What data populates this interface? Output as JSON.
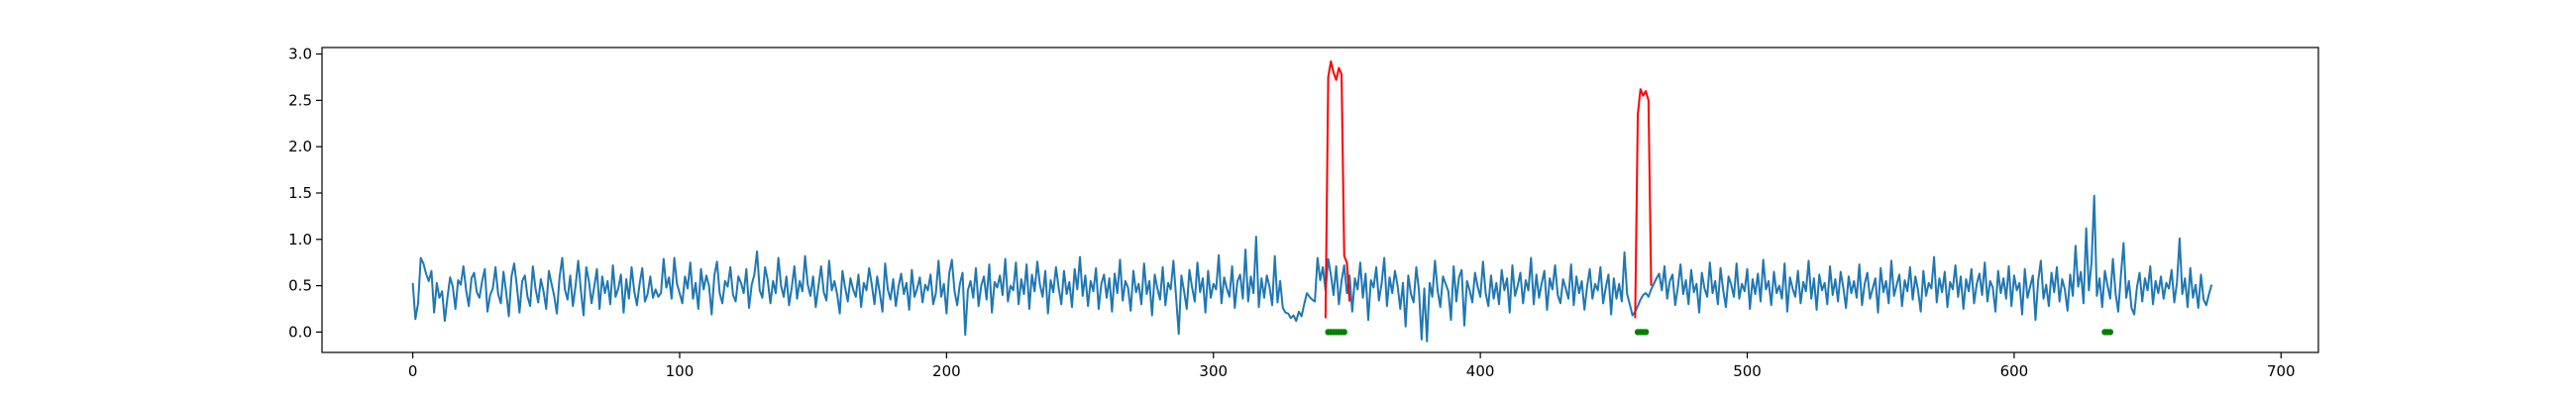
{
  "chart_data": {
    "type": "line",
    "title": "",
    "xlabel": "",
    "ylabel": "",
    "xlim": [
      -34,
      714
    ],
    "ylim": [
      -0.22,
      3.07
    ],
    "grid": false,
    "legend": "none",
    "x_ticks": [
      0,
      100,
      200,
      300,
      400,
      500,
      600,
      700
    ],
    "x_tick_labels": [
      "0",
      "100",
      "200",
      "300",
      "400",
      "500",
      "600",
      "700"
    ],
    "y_ticks": [
      0.0,
      0.5,
      1.0,
      1.5,
      2.0,
      2.5,
      3.0
    ],
    "y_tick_labels": [
      "0.0",
      "0.5",
      "1.0",
      "1.5",
      "2.0",
      "2.5",
      "3.0"
    ],
    "series": [
      {
        "color": "#1f77b4",
        "style": "line",
        "x_start": 0,
        "values": [
          0.53,
          0.14,
          0.31,
          0.8,
          0.74,
          0.63,
          0.55,
          0.66,
          0.21,
          0.53,
          0.37,
          0.44,
          0.12,
          0.37,
          0.59,
          0.49,
          0.25,
          0.56,
          0.51,
          0.71,
          0.45,
          0.28,
          0.58,
          0.64,
          0.43,
          0.37,
          0.55,
          0.68,
          0.22,
          0.4,
          0.47,
          0.7,
          0.41,
          0.31,
          0.65,
          0.43,
          0.17,
          0.6,
          0.74,
          0.5,
          0.21,
          0.55,
          0.61,
          0.38,
          0.28,
          0.71,
          0.47,
          0.32,
          0.57,
          0.44,
          0.25,
          0.66,
          0.52,
          0.39,
          0.2,
          0.59,
          0.8,
          0.46,
          0.35,
          0.61,
          0.28,
          0.5,
          0.77,
          0.45,
          0.18,
          0.7,
          0.55,
          0.31,
          0.49,
          0.68,
          0.25,
          0.6,
          0.42,
          0.55,
          0.3,
          0.72,
          0.38,
          0.47,
          0.62,
          0.21,
          0.57,
          0.36,
          0.7,
          0.44,
          0.29,
          0.52,
          0.69,
          0.33,
          0.41,
          0.6,
          0.37,
          0.46,
          0.38,
          0.42,
          0.79,
          0.48,
          0.59,
          0.36,
          0.8,
          0.52,
          0.42,
          0.31,
          0.6,
          0.47,
          0.75,
          0.36,
          0.53,
          0.25,
          0.68,
          0.46,
          0.61,
          0.5,
          0.19,
          0.61,
          0.76,
          0.42,
          0.31,
          0.55,
          0.49,
          0.7,
          0.4,
          0.33,
          0.6,
          0.53,
          0.42,
          0.68,
          0.26,
          0.51,
          0.62,
          0.87,
          0.45,
          0.37,
          0.7,
          0.56,
          0.31,
          0.55,
          0.42,
          0.8,
          0.5,
          0.38,
          0.6,
          0.29,
          0.48,
          0.71,
          0.36,
          0.55,
          0.44,
          0.82,
          0.51,
          0.39,
          0.6,
          0.27,
          0.49,
          0.71,
          0.43,
          0.34,
          0.77,
          0.45,
          0.55,
          0.41,
          0.2,
          0.66,
          0.48,
          0.33,
          0.58,
          0.46,
          0.38,
          0.62,
          0.27,
          0.53,
          0.45,
          0.69,
          0.51,
          0.3,
          0.6,
          0.42,
          0.22,
          0.74,
          0.46,
          0.35,
          0.57,
          0.28,
          0.49,
          0.63,
          0.41,
          0.53,
          0.24,
          0.67,
          0.38,
          0.47,
          0.59,
          0.32,
          0.51,
          0.45,
          0.62,
          0.3,
          0.42,
          0.77,
          0.38,
          0.52,
          0.2,
          0.63,
          0.78,
          0.44,
          0.29,
          0.52,
          0.64,
          -0.03,
          0.45,
          0.55,
          0.37,
          0.69,
          0.28,
          0.5,
          0.6,
          0.35,
          0.73,
          0.21,
          0.54,
          0.48,
          0.61,
          0.4,
          0.79,
          0.33,
          0.5,
          0.45,
          0.75,
          0.3,
          0.57,
          0.41,
          0.73,
          0.25,
          0.62,
          0.44,
          0.76,
          0.51,
          0.38,
          0.66,
          0.2,
          0.56,
          0.43,
          0.7,
          0.48,
          0.3,
          0.66,
          0.41,
          0.54,
          0.27,
          0.68,
          0.46,
          0.81,
          0.39,
          0.61,
          0.28,
          0.55,
          0.44,
          0.69,
          0.25,
          0.52,
          0.62,
          0.37,
          0.58,
          0.22,
          0.63,
          0.42,
          0.78,
          0.34,
          0.55,
          0.48,
          0.23,
          0.66,
          0.43,
          0.52,
          0.3,
          0.74,
          0.41,
          0.55,
          0.18,
          0.62,
          0.47,
          0.35,
          0.7,
          0.29,
          0.53,
          0.46,
          0.77,
          0.38,
          -0.02,
          0.61,
          0.44,
          0.25,
          0.67,
          0.48,
          0.33,
          0.75,
          0.43,
          0.58,
          0.21,
          0.66,
          0.37,
          0.52,
          0.46,
          0.83,
          0.31,
          0.59,
          0.47,
          0.38,
          0.71,
          0.26,
          0.55,
          0.62,
          0.36,
          0.89,
          0.33,
          0.6,
          0.42,
          1.03,
          0.27,
          0.58,
          0.37,
          0.61,
          0.49,
          0.29,
          0.82,
          0.32,
          0.55,
          0.26,
          0.21,
          0.2,
          0.15,
          0.18,
          0.12,
          0.22,
          0.17,
          0.3,
          0.42,
          0.38,
          0.35,
          0.33,
          0.8,
          0.56,
          0.7,
          0.45,
          0.79,
          0.62,
          0.4,
          0.71,
          0.3,
          0.55,
          0.72,
          0.42,
          0.61,
          0.22,
          0.58,
          0.46,
          0.75,
          0.37,
          0.63,
          0.13,
          0.56,
          0.48,
          0.7,
          0.34,
          0.52,
          0.8,
          0.28,
          0.59,
          0.42,
          0.66,
          0.5,
          0.25,
          0.53,
          0.06,
          0.61,
          0.41,
          0.32,
          0.7,
          0.45,
          -0.08,
          0.47,
          -0.1,
          0.53,
          0.38,
          0.77,
          0.45,
          0.27,
          0.6,
          0.52,
          0.44,
          0.13,
          0.71,
          0.33,
          0.59,
          0.67,
          0.07,
          0.55,
          0.45,
          0.32,
          0.64,
          0.49,
          0.38,
          0.76,
          0.42,
          0.28,
          0.61,
          0.36,
          0.53,
          0.3,
          0.67,
          0.45,
          0.58,
          0.21,
          0.72,
          0.39,
          0.5,
          0.64,
          0.31,
          0.56,
          0.45,
          0.8,
          0.3,
          0.62,
          0.37,
          0.53,
          0.66,
          0.24,
          0.58,
          0.46,
          0.72,
          0.4,
          0.31,
          0.57,
          0.47,
          0.36,
          0.73,
          0.29,
          0.6,
          0.42,
          0.55,
          0.24,
          0.49,
          0.68,
          0.36,
          0.52,
          0.45,
          0.7,
          0.31,
          0.48,
          0.62,
          0.19,
          0.58,
          0.36,
          0.52,
          0.33,
          0.86,
          0.41,
          0.3,
          0.18,
          0.22,
          0.28,
          0.35,
          0.4,
          0.42,
          0.38,
          0.46,
          0.52,
          0.58,
          0.63,
          0.45,
          0.71,
          0.36,
          0.55,
          0.62,
          0.29,
          0.48,
          0.73,
          0.41,
          0.56,
          0.3,
          0.67,
          0.43,
          0.52,
          0.21,
          0.64,
          0.47,
          0.38,
          0.75,
          0.42,
          0.55,
          0.3,
          0.69,
          0.45,
          0.27,
          0.6,
          0.51,
          0.38,
          0.74,
          0.36,
          0.52,
          0.44,
          0.68,
          0.25,
          0.57,
          0.41,
          0.63,
          0.33,
          0.78,
          0.46,
          0.55,
          0.29,
          0.65,
          0.42,
          0.5,
          0.36,
          0.74,
          0.22,
          0.59,
          0.47,
          0.38,
          0.66,
          0.31,
          0.54,
          0.44,
          0.77,
          0.36,
          0.58,
          0.24,
          0.62,
          0.45,
          0.53,
          0.3,
          0.71,
          0.4,
          0.57,
          0.33,
          0.65,
          0.48,
          0.26,
          0.6,
          0.42,
          0.55,
          0.37,
          0.73,
          0.29,
          0.52,
          0.64,
          0.36,
          0.47,
          0.58,
          0.21,
          0.69,
          0.43,
          0.55,
          0.31,
          0.77,
          0.39,
          0.51,
          0.62,
          0.28,
          0.56,
          0.44,
          0.7,
          0.35,
          0.6,
          0.45,
          0.22,
          0.66,
          0.39,
          0.53,
          0.47,
          0.81,
          0.32,
          0.58,
          0.43,
          0.65,
          0.27,
          0.54,
          0.46,
          0.72,
          0.38,
          0.6,
          0.25,
          0.57,
          0.44,
          0.68,
          0.31,
          0.52,
          0.63,
          0.4,
          0.75,
          0.33,
          0.55,
          0.48,
          0.22,
          0.66,
          0.42,
          0.58,
          0.36,
          0.71,
          0.28,
          0.61,
          0.45,
          0.53,
          0.19,
          0.68,
          0.37,
          0.49,
          0.61,
          0.13,
          0.55,
          0.77,
          0.36,
          0.51,
          0.28,
          0.64,
          0.43,
          0.7,
          0.33,
          0.57,
          0.46,
          0.23,
          0.62,
          0.39,
          0.93,
          0.49,
          0.65,
          0.31,
          1.12,
          0.45,
          0.75,
          1.47,
          0.39,
          0.58,
          0.27,
          0.66,
          0.5,
          0.36,
          0.79,
          0.42,
          0.22,
          0.61,
          0.96,
          0.37,
          0.55,
          0.26,
          0.19,
          0.48,
          0.64,
          0.33,
          0.58,
          0.45,
          0.71,
          0.3,
          0.55,
          0.42,
          0.6,
          0.36,
          0.53,
          0.47,
          0.67,
          0.32,
          0.53,
          1.01,
          0.41,
          0.58,
          0.27,
          0.69,
          0.37,
          0.51,
          0.26,
          0.62,
          0.35,
          0.29,
          0.41,
          0.51
        ]
      },
      {
        "color": "#ff0000",
        "style": "line",
        "x": [
          342,
          343,
          344,
          345,
          346,
          347,
          348,
          349,
          350,
          351
        ],
        "values": [
          0.15,
          2.75,
          2.92,
          2.8,
          2.72,
          2.85,
          2.78,
          0.82,
          0.75,
          0.33
        ]
      },
      {
        "color": "#ff0000",
        "style": "line",
        "x": [
          458,
          459,
          460,
          461,
          462,
          463,
          464
        ],
        "values": [
          0.15,
          2.35,
          2.62,
          2.55,
          2.6,
          2.5,
          0.5
        ]
      },
      {
        "color": "#008000",
        "style": "markers",
        "x": [
          343,
          344,
          345,
          346,
          347,
          348,
          349,
          459,
          460,
          461,
          462,
          634,
          635,
          636
        ],
        "values": [
          0,
          0,
          0,
          0,
          0,
          0,
          0,
          0,
          0,
          0,
          0,
          0,
          0,
          0
        ]
      }
    ]
  }
}
